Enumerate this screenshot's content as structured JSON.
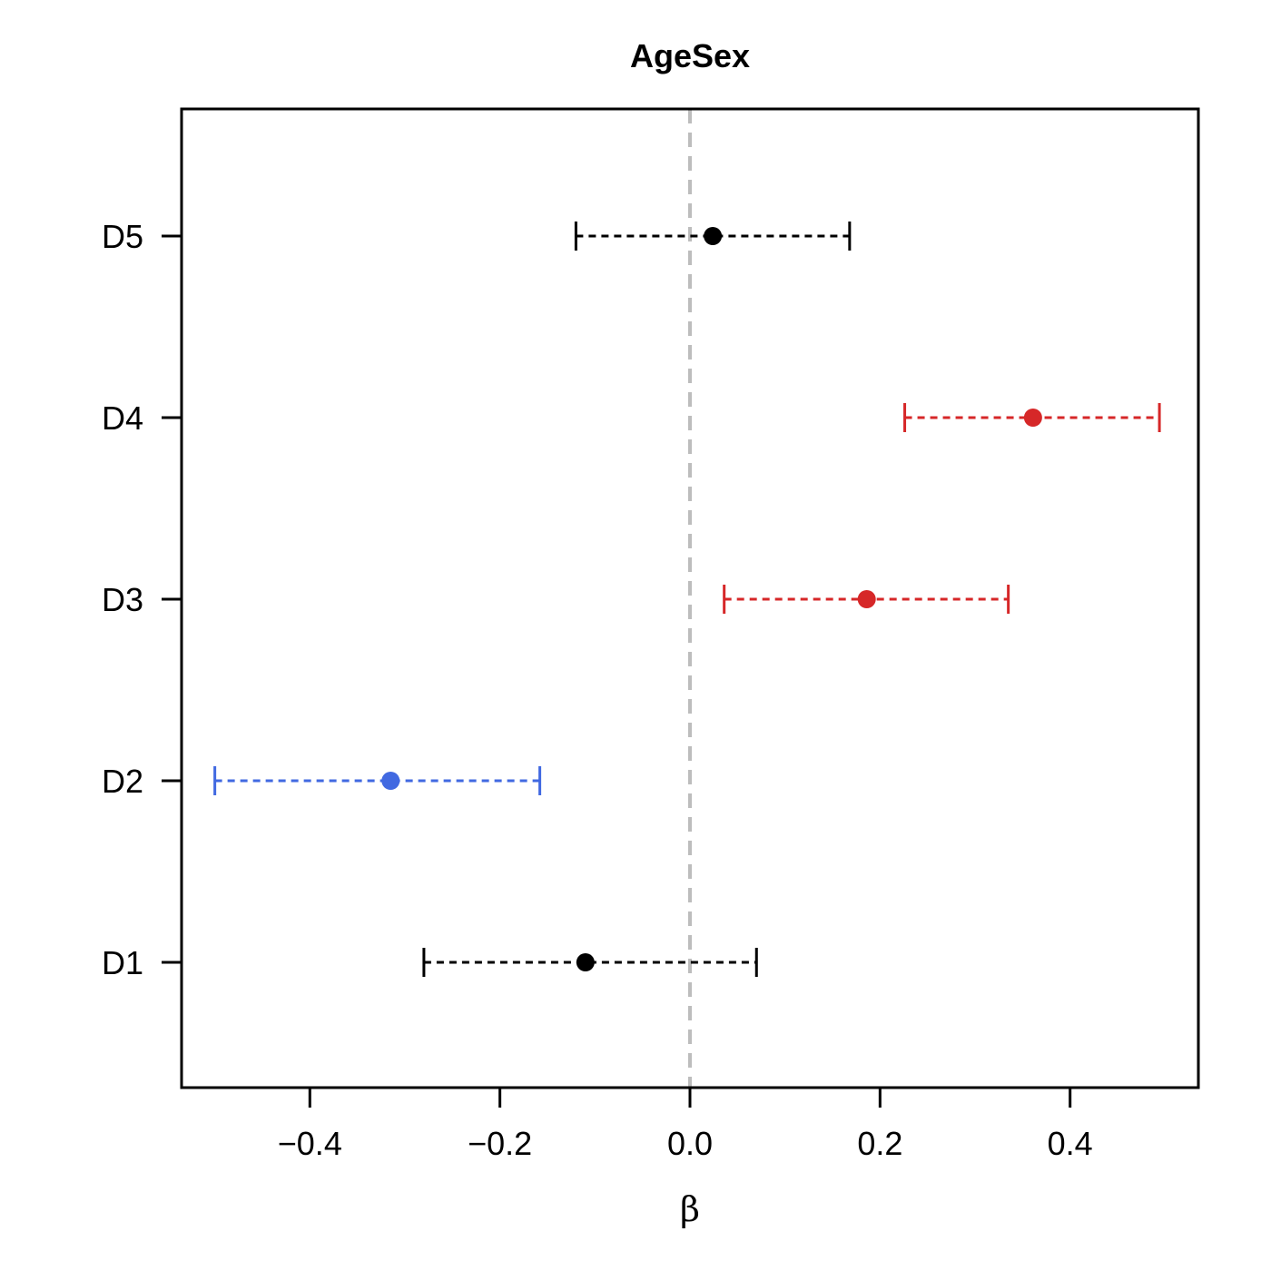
{
  "chart_data": {
    "type": "forest",
    "title": "AgeSex",
    "xlabel": "β",
    "ylabel": "",
    "xlim": [
      -0.535,
      0.535
    ],
    "x_ticks": [
      -0.4,
      -0.2,
      0.0,
      0.2,
      0.4
    ],
    "x_tick_labels": [
      "−0.4",
      "−0.2",
      "0.0",
      "0.2",
      "0.4"
    ],
    "reference_line": {
      "x": 0.0,
      "color": "#bdbdbd",
      "style": "dashed"
    },
    "categories": [
      "D1",
      "D2",
      "D3",
      "D4",
      "D5"
    ],
    "estimates": [
      {
        "label": "D1",
        "beta": -0.11,
        "lower": -0.28,
        "upper": 0.07,
        "color": "#000000"
      },
      {
        "label": "D2",
        "beta": -0.315,
        "lower": -0.5,
        "upper": -0.158,
        "color": "#4169e1"
      },
      {
        "label": "D3",
        "beta": 0.186,
        "lower": 0.036,
        "upper": 0.335,
        "color": "#d62728"
      },
      {
        "label": "D4",
        "beta": 0.361,
        "lower": 0.226,
        "upper": 0.494,
        "color": "#d62728"
      },
      {
        "label": "D5",
        "beta": 0.024,
        "lower": -0.12,
        "upper": 0.168,
        "color": "#000000"
      }
    ],
    "grid": false
  }
}
